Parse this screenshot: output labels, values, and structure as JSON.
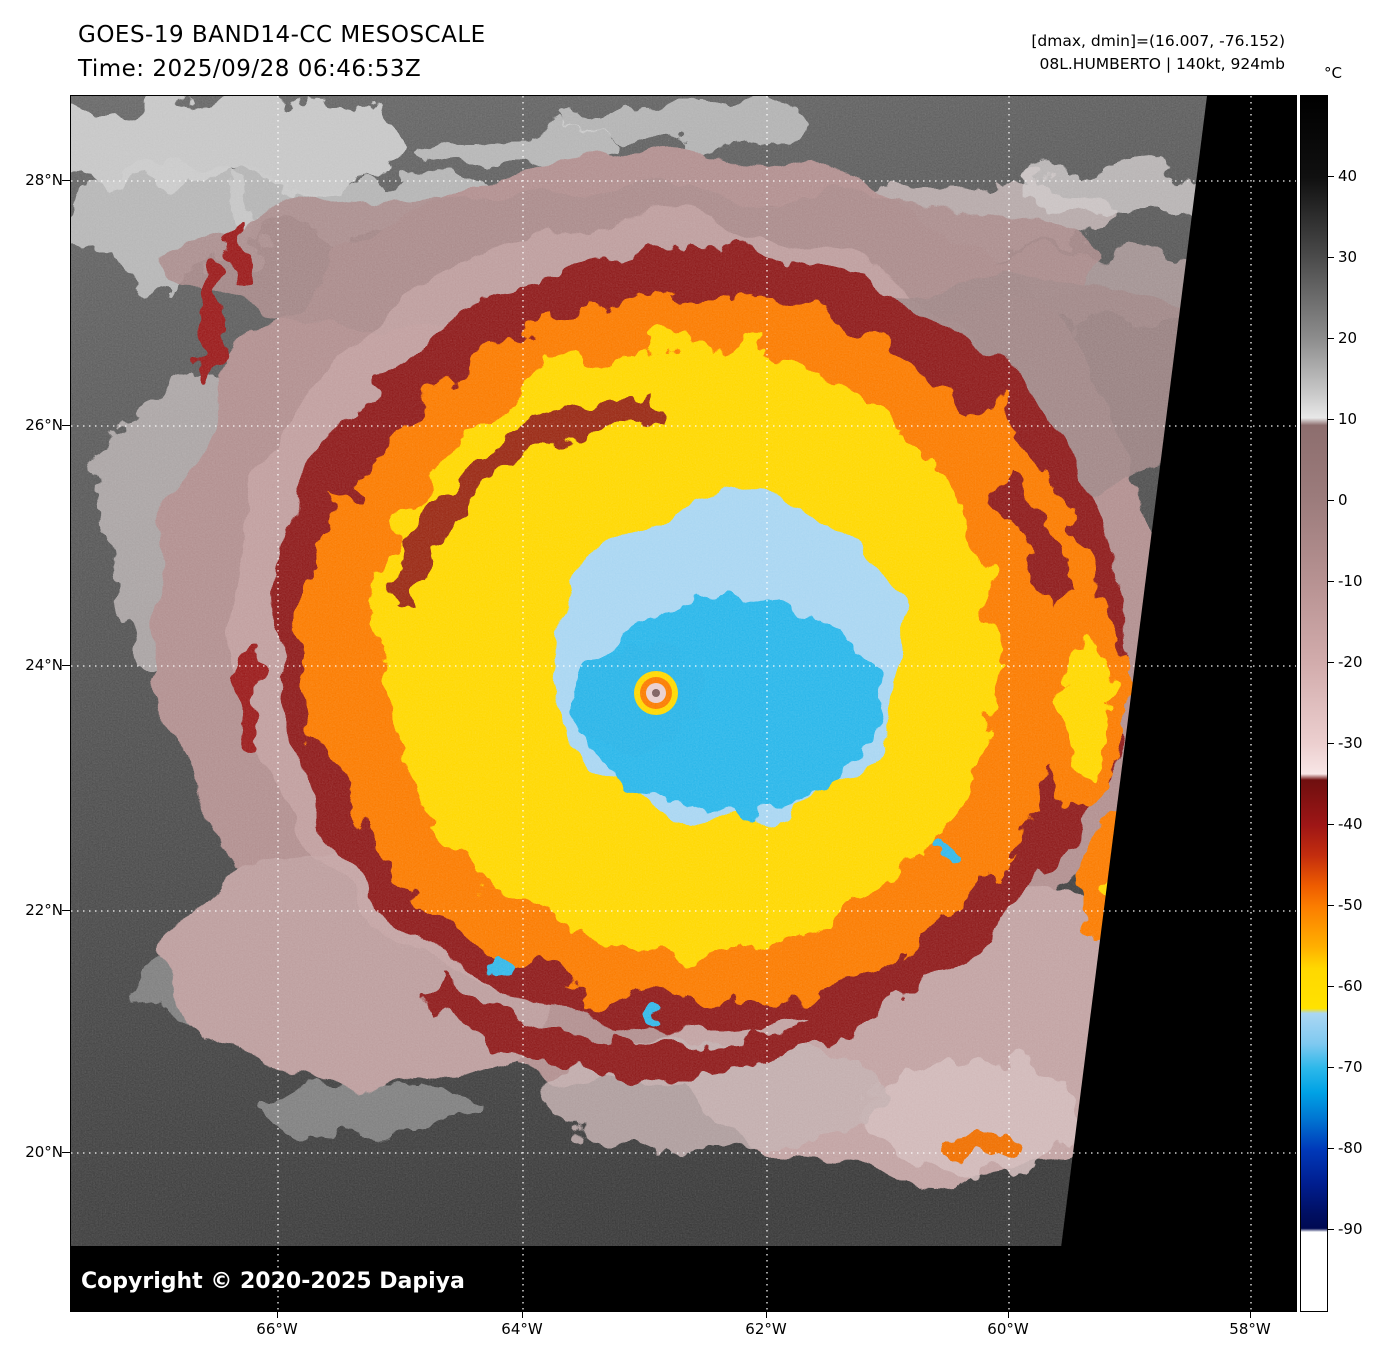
{
  "header": {
    "title": "GOES-19 BAND14-CC MESOSCALE",
    "time": "Time: 2025/09/28 06:46:53Z",
    "dmax_dmin": "[dmax, dmin]=(16.007, -76.152)",
    "storm": "08L.HUMBERTO | 140kt, 924mb"
  },
  "map": {
    "copyright": "Copyright © 2020-2025 Dapiya",
    "lat_labels": [
      "28°N",
      "26°N",
      "24°N",
      "22°N",
      "20°N"
    ],
    "lon_labels": [
      "66°W",
      "64°W",
      "62°W",
      "60°W",
      "58°W"
    ]
  },
  "colorbar": {
    "unit": "°C",
    "ticks": [
      "40",
      "30",
      "20",
      "10",
      "0",
      "-10",
      "-20",
      "-30",
      "-40",
      "-50",
      "-60",
      "-70",
      "-80",
      "-90"
    ],
    "palette": {
      "warm_40C": "#141414",
      "gray_10C": "#e8e8e8",
      "mauve_0C": "#9c7c7c",
      "pink_-30C": "#eccfcf",
      "darkred_-40C": "#9e1616",
      "orange_-50C": "#fb7d00",
      "yellow_-60C": "#ffd800",
      "lightblue_-65C": "#abd7f3",
      "cyan_-70C": "#2db8ea",
      "blue_-80C": "#0039b9",
      "white_-90C": "#ffffff"
    }
  }
}
